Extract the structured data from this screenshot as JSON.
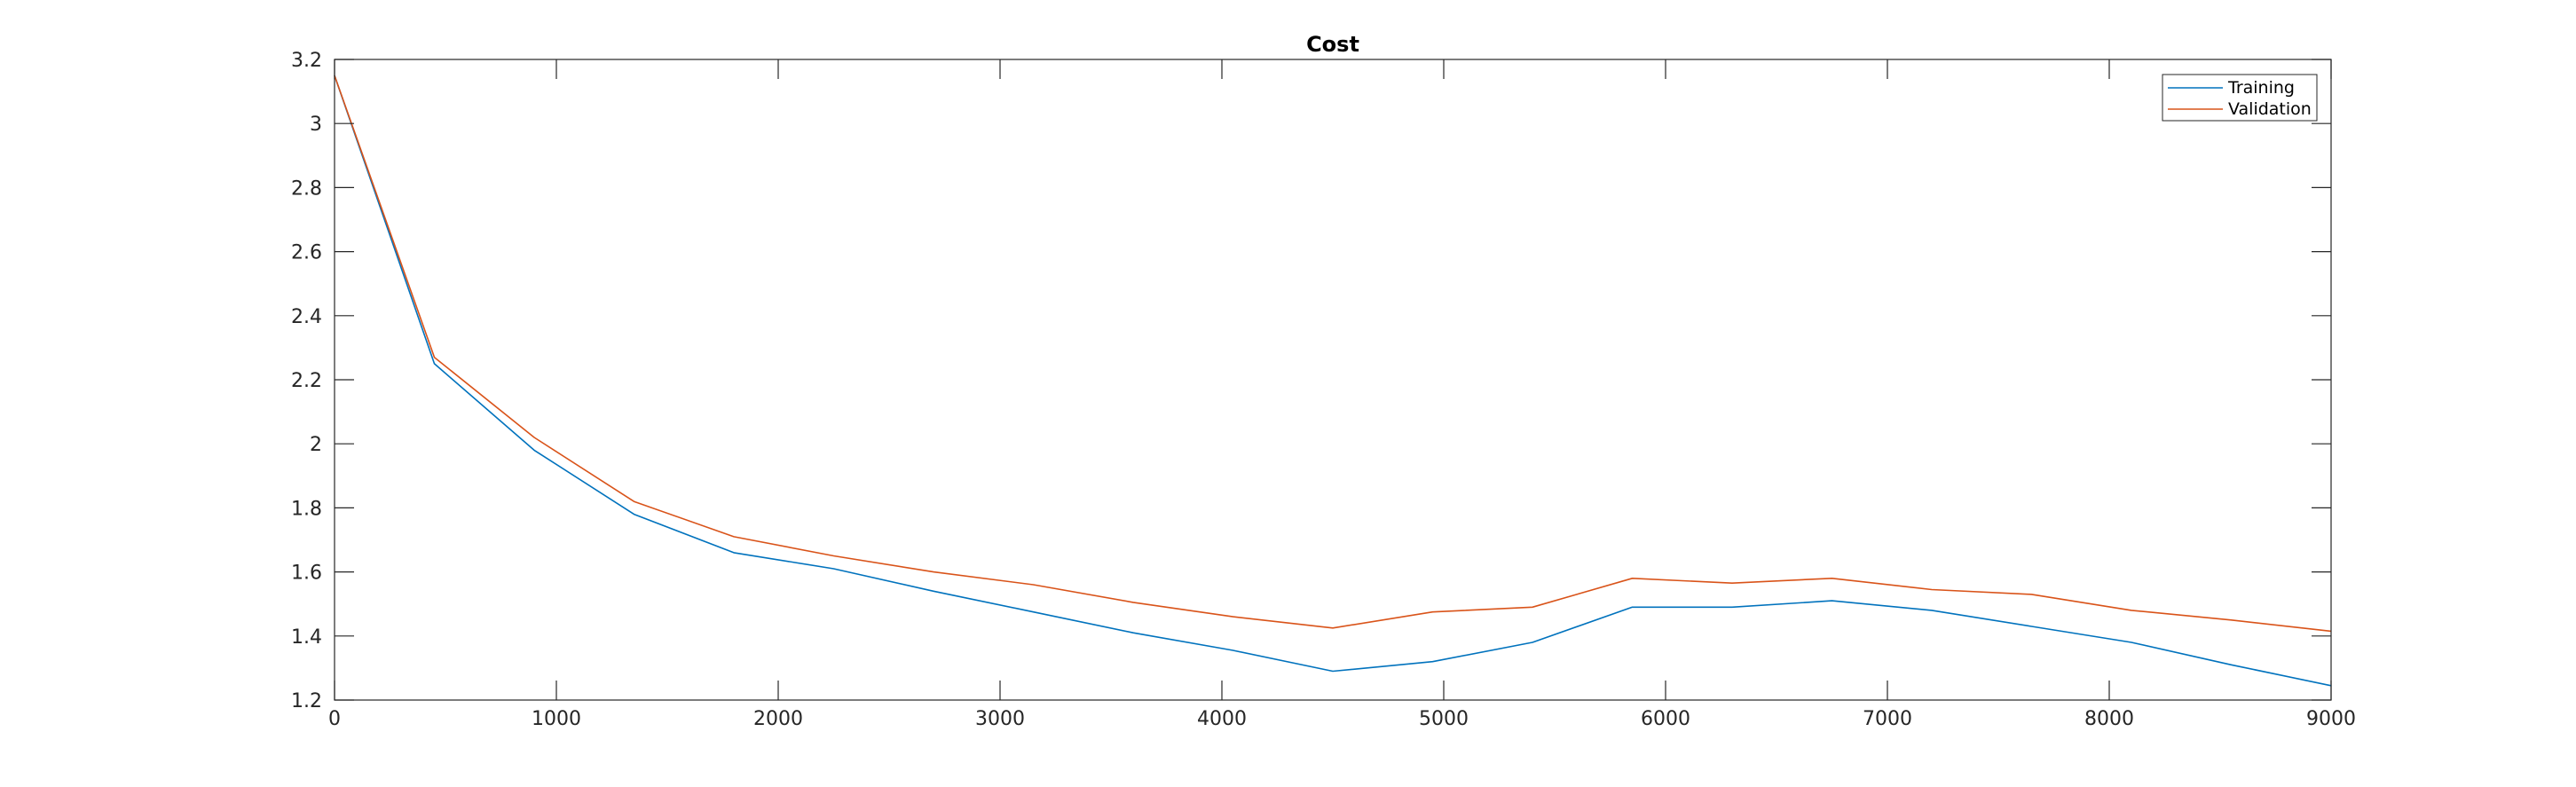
{
  "chart_data": {
    "type": "line",
    "title": "Cost",
    "xlabel": "",
    "ylabel": "",
    "xlim": [
      0,
      9000
    ],
    "ylim": [
      1.2,
      3.2
    ],
    "xticks": [
      0,
      1000,
      2000,
      3000,
      4000,
      5000,
      6000,
      7000,
      8000,
      9000
    ],
    "yticks": [
      1.2,
      1.4,
      1.6,
      1.8,
      2,
      2.2,
      2.4,
      2.6,
      2.8,
      3,
      3.2
    ],
    "xtick_labels": [
      "0",
      "1000",
      "2000",
      "3000",
      "4000",
      "5000",
      "6000",
      "7000",
      "8000",
      "9000"
    ],
    "ytick_labels": [
      "1.2",
      "1.4",
      "1.6",
      "1.8",
      "2",
      "2.2",
      "2.4",
      "2.6",
      "2.8",
      "3",
      "3.2"
    ],
    "grid": false,
    "legend_position": "top-right",
    "x": [
      0,
      450,
      900,
      1350,
      1800,
      2250,
      2700,
      3150,
      3600,
      4050,
      4500,
      4950,
      5400,
      5850,
      6300,
      6750,
      7200,
      7650,
      8100,
      8550,
      9000
    ],
    "series": [
      {
        "name": "Training",
        "color": "#0072BD",
        "values": [
          3.15,
          2.25,
          1.98,
          1.78,
          1.66,
          1.61,
          1.54,
          1.475,
          1.41,
          1.355,
          1.29,
          1.32,
          1.38,
          1.49,
          1.49,
          1.51,
          1.48,
          1.43,
          1.38,
          1.31,
          1.245
        ]
      },
      {
        "name": "Validation",
        "color": "#D95319",
        "values": [
          3.15,
          2.27,
          2.02,
          1.82,
          1.71,
          1.65,
          1.6,
          1.56,
          1.505,
          1.46,
          1.425,
          1.475,
          1.49,
          1.58,
          1.565,
          1.58,
          1.545,
          1.53,
          1.48,
          1.45,
          1.415
        ]
      }
    ]
  }
}
